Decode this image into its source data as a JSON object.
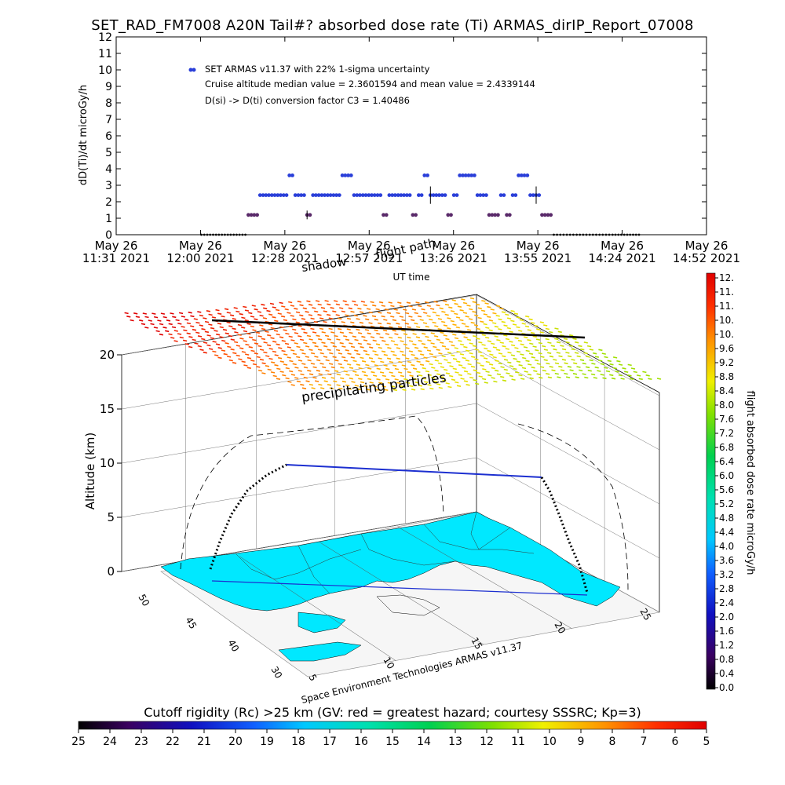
{
  "title": "SET_RAD_FM7008  A20N Tail#? absorbed dose rate (Ti) ARMAS_dirIP_Report_07008",
  "top_chart": {
    "ylabel": "dD(Ti)/dt microGy/h",
    "legend": {
      "series": "SET ARMAS v11.37 with 22% 1-sigma uncertainty",
      "line2": "Cruise altitude median value = 2.3601594 and mean value = 2.4339144",
      "line3": "D(si) -> D(ti) conversion factor C3 = 1.40486"
    },
    "xlabel": "UT time",
    "x_ticks": [
      {
        "top": "May 26",
        "bottom": "11:31 2021"
      },
      {
        "top": "May 26",
        "bottom": "12:00 2021"
      },
      {
        "top": "May 26",
        "bottom": "12:28 2021"
      },
      {
        "top": "May 26",
        "bottom": "12:57 2021"
      },
      {
        "top": "May 26",
        "bottom": "13:26 2021"
      },
      {
        "top": "May 26",
        "bottom": "13:55 2021"
      },
      {
        "top": "May 26",
        "bottom": "14:24 2021"
      },
      {
        "top": "May 26",
        "bottom": "14:52 2021"
      }
    ],
    "y_ticks": [
      "0",
      "1",
      "2",
      "3",
      "4",
      "5",
      "6",
      "7",
      "8",
      "9",
      "10",
      "11",
      "12"
    ],
    "overlay_labels": {
      "shadow": "shadow",
      "flight_path": "flight path"
    }
  },
  "three_d": {
    "zlabel": "Altitude (km)",
    "z_ticks": [
      "0",
      "5",
      "10",
      "15",
      "20"
    ],
    "lat_ticks": [
      "30",
      "40",
      "45",
      "50"
    ],
    "lon_ticks": [
      "5",
      "10",
      "15",
      "20",
      "25"
    ],
    "precip_label": "precipitating particles",
    "credit": "Space Environment Technologies ARMAS v11.37"
  },
  "colorbar_right": {
    "label": "flight absorbed dose rate microGy/h",
    "ticks": [
      "12.",
      "11.",
      "11.",
      "10.",
      "10.",
      "9.6",
      "9.2",
      "8.8",
      "8.4",
      "8.0",
      "7.6",
      "7.2",
      "6.8",
      "6.4",
      "6.0",
      "5.6",
      "5.2",
      "4.8",
      "4.4",
      "4.0",
      "3.6",
      "3.2",
      "2.8",
      "2.4",
      "2.0",
      "1.6",
      "1.2",
      "0.8",
      "0.4",
      "0.0"
    ]
  },
  "colorbar_bottom": {
    "label": "Cutoff rigidity (Rc) >25 km (GV: red = greatest hazard; courtesy SSSRC; Kp=3)",
    "ticks": [
      "25",
      "24",
      "23",
      "22",
      "21",
      "20",
      "19",
      "18",
      "17",
      "16",
      "15",
      "14",
      "13",
      "12",
      "11",
      "10",
      "9",
      "8",
      "7",
      "6",
      "5"
    ]
  },
  "colors": {
    "series": "#2a3fd9",
    "low_points": "#5a2a6a",
    "map_land": "#00e8ff",
    "flight_path_3d": "#1c2fd0"
  },
  "chart_data": [
    {
      "type": "scatter",
      "title": "SET_RAD_FM7008  A20N Tail#? absorbed dose rate (Ti) ARMAS_dirIP_Report_07008",
      "xlabel": "UT time",
      "ylabel": "dD(Ti)/dt microGy/h",
      "xlim": [
        "11:31",
        "14:52"
      ],
      "ylim": [
        0,
        12
      ],
      "series": [
        {
          "name": "SET ARMAS v11.37 with 22% 1-sigma uncertainty",
          "x": [
            "12:00",
            "12:05",
            "12:10",
            "12:16",
            "12:18",
            "12:20",
            "12:22",
            "12:25",
            "12:28",
            "12:30",
            "12:32",
            "12:34",
            "12:36",
            "12:38",
            "12:40",
            "12:42",
            "12:44",
            "12:46",
            "12:48",
            "12:50",
            "12:52",
            "12:54",
            "12:56",
            "12:58",
            "13:00",
            "13:02",
            "13:04",
            "13:06",
            "13:08",
            "13:10",
            "13:12",
            "13:14",
            "13:16",
            "13:18",
            "13:20",
            "13:22",
            "13:24",
            "13:26",
            "13:28",
            "13:30",
            "13:32",
            "13:34",
            "13:36",
            "13:38",
            "13:40",
            "13:42",
            "13:44",
            "13:46",
            "13:48",
            "13:50",
            "13:52",
            "13:54",
            "13:56",
            "14:00",
            "14:10",
            "14:20",
            "14:24",
            "14:30"
          ],
          "values": [
            0,
            0,
            0,
            1.2,
            1.2,
            2.4,
            2.4,
            2.4,
            2.4,
            3.6,
            2.4,
            2.4,
            1.2,
            2.4,
            2.4,
            2.4,
            2.4,
            2.4,
            3.6,
            3.6,
            2.4,
            2.4,
            2.4,
            2.4,
            2.4,
            1.2,
            2.4,
            2.4,
            2.4,
            2.4,
            1.2,
            2.4,
            3.6,
            2.4,
            2.4,
            2.4,
            1.2,
            2.4,
            3.6,
            3.6,
            3.6,
            2.4,
            2.4,
            1.2,
            1.2,
            2.4,
            1.2,
            2.4,
            3.6,
            3.6,
            2.4,
            2.4,
            1.2,
            0,
            0,
            0,
            0,
            0
          ]
        }
      ]
    },
    {
      "type": "line",
      "title": "",
      "xlabel": "",
      "ylabel": "Altitude (km)",
      "zlim": [
        0,
        20
      ],
      "annotations": [
        "precipitating particles",
        "shadow",
        "flight path"
      ],
      "series": [
        {
          "name": "flight path",
          "altitude_km": [
            0,
            2,
            5,
            8,
            10,
            10,
            10,
            10,
            10,
            10,
            9.5,
            8,
            6,
            3,
            1,
            0
          ]
        }
      ]
    }
  ]
}
